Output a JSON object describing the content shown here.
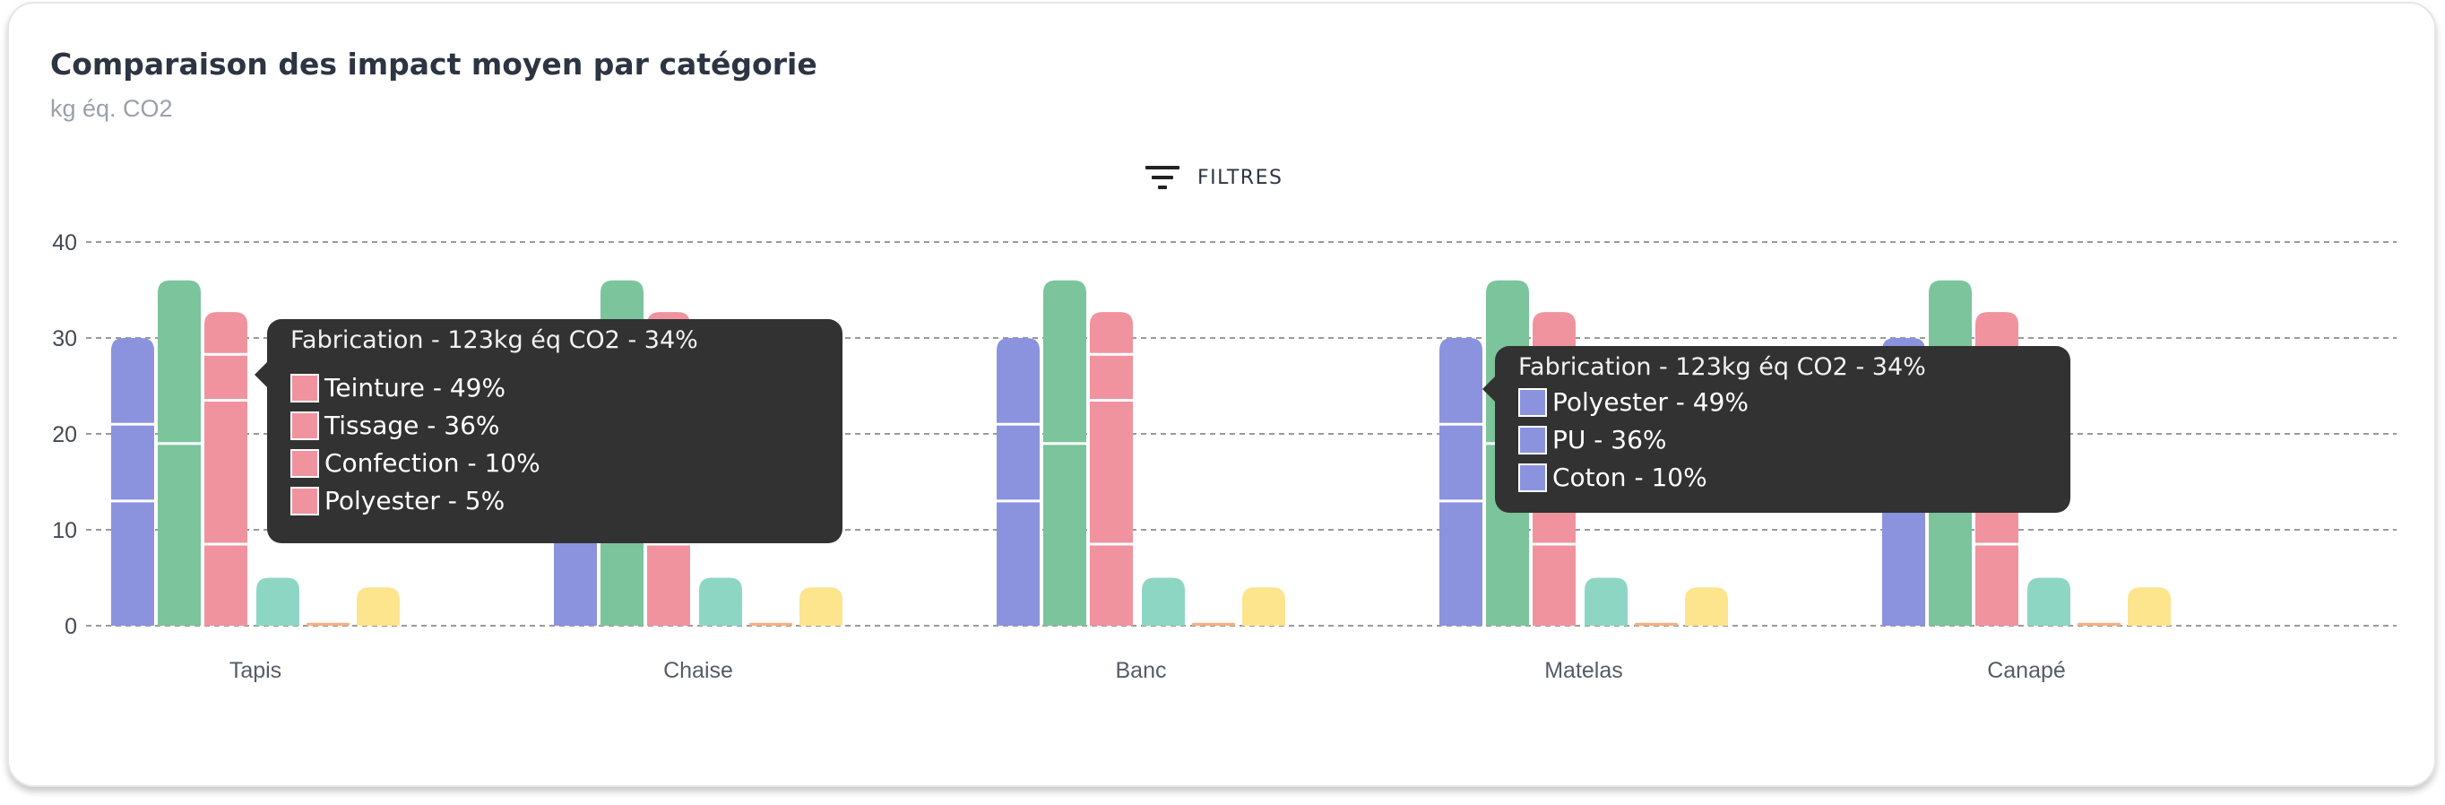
{
  "header": {
    "title": "Comparaison des impact moyen par catégorie",
    "subtitle": "kg éq. CO2"
  },
  "toolbar": {
    "filters_label": "FILTRES",
    "filters_icon": "filter-list-icon"
  },
  "colors": {
    "blue": "#8b93df",
    "green": "#7cc49c",
    "red": "#f0939e",
    "teal": "#8ed6c4",
    "orange": "#f4b183",
    "yellow": "#fde58e",
    "grid": "#9a9a9a",
    "tooltip_bg": "#323232"
  },
  "chart_data": {
    "type": "bar",
    "categories": [
      "Tapis",
      "Chaise",
      "Banc",
      "Matelas",
      "Canapé"
    ],
    "ylim": [
      0,
      40
    ],
    "yticks": [
      0,
      10,
      20,
      30,
      40
    ],
    "grid": true,
    "stacked_bars_per_category": [
      {
        "color": "blue",
        "segments": [
          13,
          8,
          9
        ]
      },
      {
        "color": "green",
        "segments": [
          19,
          17
        ]
      },
      {
        "color": "red",
        "segments": [
          8.5,
          15,
          4.8,
          4.4
        ]
      },
      {
        "color": "teal",
        "segments": [
          5
        ]
      },
      {
        "color": "orange",
        "segments": [
          0.3
        ]
      },
      {
        "color": "yellow",
        "segments": [
          4
        ]
      }
    ]
  },
  "tooltips": [
    {
      "title": "Fabrication - 123kg éq CO2 - 34%",
      "color": "red",
      "items": [
        "Teinture - 49%",
        "Tissage - 36%",
        "Confection - 10%",
        "Polyester - 5%"
      ]
    },
    {
      "title": "Fabrication - 123kg éq CO2 - 34%",
      "color": "blue",
      "items": [
        "Polyester - 49%",
        "PU - 36%",
        "Coton - 10%"
      ]
    }
  ]
}
